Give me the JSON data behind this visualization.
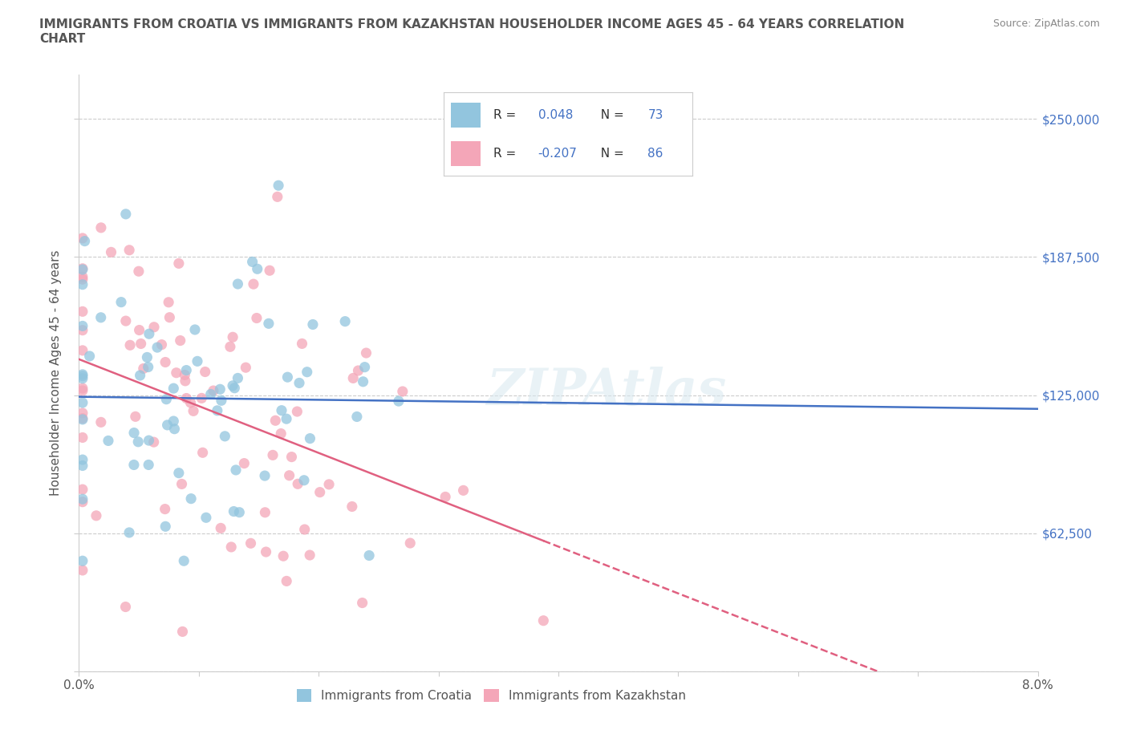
{
  "title": "IMMIGRANTS FROM CROATIA VS IMMIGRANTS FROM KAZAKHSTAN HOUSEHOLDER INCOME AGES 45 - 64 YEARS CORRELATION\nCHART",
  "source": "Source: ZipAtlas.com",
  "ylabel": "Householder Income Ages 45 - 64 years",
  "xlim": [
    0.0,
    0.08
  ],
  "ylim": [
    0,
    270000
  ],
  "yticks": [
    0,
    62500,
    125000,
    187500,
    250000
  ],
  "xticks": [
    0.0,
    0.01,
    0.02,
    0.03,
    0.04,
    0.05,
    0.06,
    0.07,
    0.08
  ],
  "xtick_labels_show": [
    "0.0%",
    "",
    "",
    "",
    "",
    "",
    "",
    "",
    "8.0%"
  ],
  "ytick_labels": [
    "",
    "$62,500",
    "$125,000",
    "$187,500",
    "$250,000"
  ],
  "croatia_color": "#92c5de",
  "kazakhstan_color": "#f4a6b8",
  "croatia_R": 0.048,
  "croatia_N": 73,
  "kazakhstan_R": -0.207,
  "kazakhstan_N": 86,
  "legend_labels": [
    "Immigrants from Croatia",
    "Immigrants from Kazakhstan"
  ],
  "background_color": "#ffffff",
  "grid_color": "#cccccc",
  "trend_blue": "#4472c4",
  "trend_pink": "#e06080",
  "text_color": "#4472c4",
  "label_color": "#555555"
}
